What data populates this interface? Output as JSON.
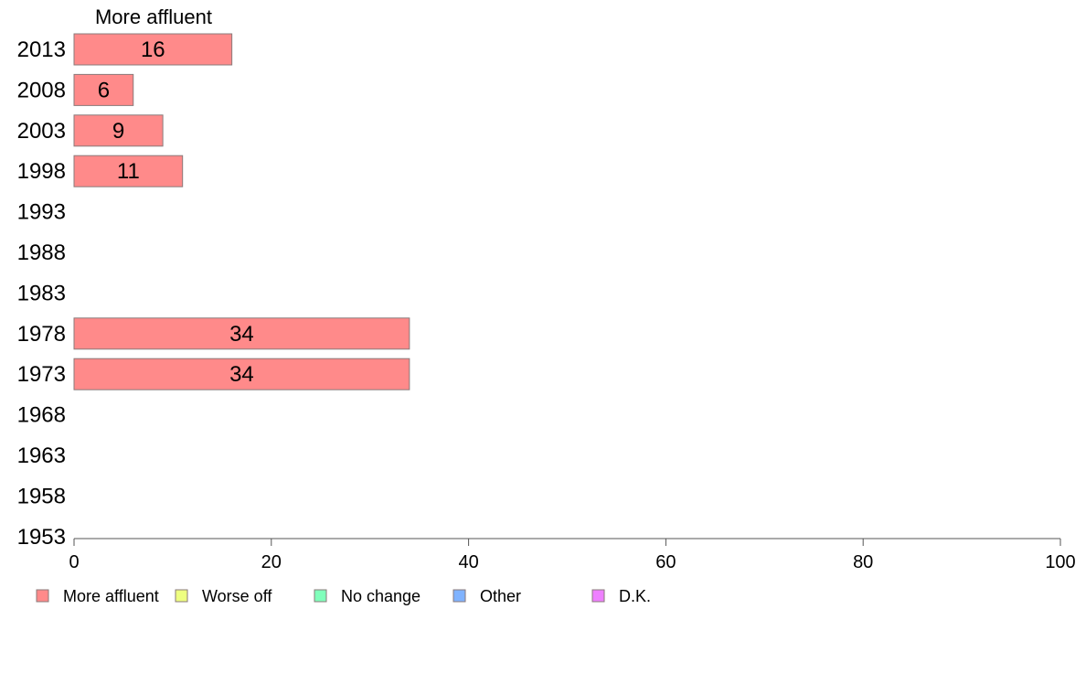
{
  "chart_data": {
    "type": "bar",
    "orientation": "horizontal",
    "stacked": true,
    "categories": [
      "2013",
      "2008",
      "2003",
      "1998",
      "1993",
      "1988",
      "1983",
      "1978",
      "1973",
      "1968",
      "1963",
      "1958",
      "1953"
    ],
    "series": [
      {
        "name": "More affluent",
        "color": "#ff8a8a",
        "values": [
          16,
          6,
          9,
          11,
          null,
          null,
          null,
          34,
          34,
          null,
          null,
          null,
          null
        ]
      },
      {
        "name": "Worse off",
        "color": "#eeff80",
        "values": [
          null,
          null,
          null,
          null,
          null,
          null,
          null,
          null,
          null,
          null,
          null,
          null,
          null
        ]
      },
      {
        "name": "No change",
        "color": "#80ffbb",
        "values": [
          null,
          null,
          null,
          null,
          null,
          null,
          null,
          null,
          null,
          null,
          null,
          null,
          null
        ]
      },
      {
        "name": "Other",
        "color": "#80b3ff",
        "values": [
          null,
          null,
          null,
          null,
          null,
          null,
          null,
          null,
          null,
          null,
          null,
          null,
          null
        ]
      },
      {
        "name": "D.K.",
        "color": "#ee80ff",
        "values": [
          null,
          null,
          null,
          null,
          null,
          null,
          null,
          null,
          null,
          null,
          null,
          null,
          null
        ]
      }
    ],
    "series_title": "More affluent",
    "xlim": [
      0,
      100
    ],
    "xticks": [
      0,
      20,
      40,
      60,
      80,
      100
    ],
    "grid": false,
    "legend_position": "bottom"
  }
}
